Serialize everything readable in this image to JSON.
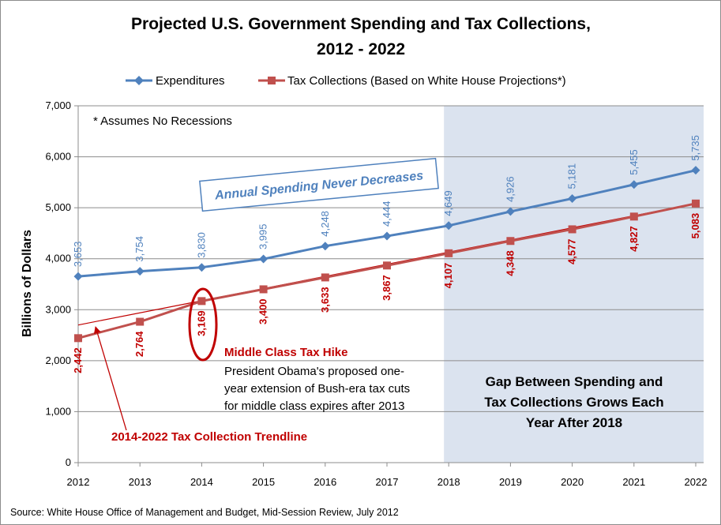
{
  "chart_data": {
    "type": "line",
    "title_line1": "Projected U.S. Government Spending and Tax Collections,",
    "title_line2": "2012 - 2022",
    "ylabel": "Billions of Dollars",
    "xlabel": "",
    "ylim": [
      0,
      7000
    ],
    "yticks": [
      "0",
      "1,000",
      "2,000",
      "3,000",
      "4,000",
      "5,000",
      "6,000",
      "7,000"
    ],
    "ytick_values": [
      0,
      1000,
      2000,
      3000,
      4000,
      5000,
      6000,
      7000
    ],
    "categories": [
      "2012",
      "2013",
      "2014",
      "2015",
      "2016",
      "2017",
      "2018",
      "2019",
      "2020",
      "2021",
      "2022"
    ],
    "series": [
      {
        "name": "Expenditures",
        "color": "#4f81bd",
        "marker": "diamond",
        "values": [
          3653,
          3754,
          3830,
          3995,
          4248,
          4444,
          4649,
          4926,
          5181,
          5455,
          5735
        ],
        "labels": [
          "3,653",
          "3,754",
          "3,830",
          "3,995",
          "4,248",
          "4,444",
          "4,649",
          "4,926",
          "5,181",
          "5,455",
          "5,735"
        ]
      },
      {
        "name": "Tax Collections (Based on White House Projections*)",
        "color": "#c0504d",
        "marker": "square",
        "values": [
          2442,
          2764,
          3169,
          3400,
          3633,
          3867,
          4107,
          4348,
          4577,
          4827,
          5083
        ],
        "labels": [
          "2,442",
          "2,764",
          "3,169",
          "3,400",
          "3,633",
          "3,867",
          "4,107",
          "4,348",
          "4,577",
          "4,827",
          "5,083"
        ]
      }
    ],
    "trendline": {
      "color": "#c00000",
      "x_start": "2012",
      "value_start": 2700,
      "x_end": "2022",
      "value_end": 5083
    },
    "shaded_region": {
      "from": "2018",
      "to": "2022",
      "color": "#dbe3ef"
    },
    "legend_position": "top"
  },
  "annotations": {
    "assumption_note": "* Assumes No Recessions",
    "spending_box": "Annual Spending Never Decreases",
    "tax_hike_heading": "Middle Class Tax Hike",
    "tax_hike_lines": [
      "President Obama's proposed one-",
      "year extension of Bush-era tax cuts",
      "for middle class expires after 2013"
    ],
    "gap_lines": [
      "Gap Between Spending and",
      "Tax Collections Grows Each",
      "Year After 2018"
    ],
    "trendline_label": "2014-2022 Tax Collection Trendline",
    "highlight_color": "#c00000"
  },
  "source": "Source: White House Office of Management and Budget, Mid-Session Review, July 2012"
}
